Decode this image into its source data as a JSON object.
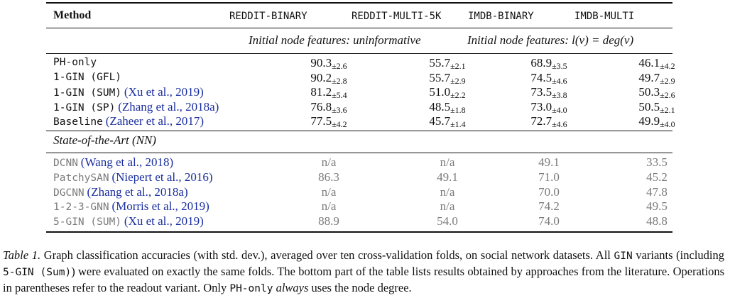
{
  "table": {
    "header": {
      "method": "Method",
      "datasets": [
        "REDDIT-BINARY",
        "REDDIT-MULTI-5K",
        "IMDB-BINARY",
        "IMDB-MULTI"
      ]
    },
    "feature_notes": {
      "left": "Initial node features: uninformative",
      "right_prefix": "Initial node features: ",
      "right_formula": "l(v) = deg(v)"
    },
    "our_rows": [
      {
        "name": "PH-only",
        "cite": "",
        "values": [
          "90.3",
          "55.7",
          "68.9",
          "46.1"
        ],
        "sds": [
          "±2.6",
          "±2.1",
          "±3.5",
          "±4.2"
        ]
      },
      {
        "name": "1-GIN (GFL)",
        "cite": "",
        "values": [
          "90.2",
          "55.7",
          "74.5",
          "49.7"
        ],
        "sds": [
          "±2.8",
          "±2.9",
          "±4.6",
          "±2.9"
        ]
      },
      {
        "name": "1-GIN (SUM)",
        "cite": "(Xu et al., 2019)",
        "values": [
          "81.2",
          "51.0",
          "73.5",
          "50.3"
        ],
        "sds": [
          "±5.4",
          "±2.2",
          "±3.8",
          "±2.6"
        ]
      },
      {
        "name": "1-GIN (SP)",
        "cite": "(Zhang et al., 2018a)",
        "values": [
          "76.8",
          "48.5",
          "73.0",
          "50.5"
        ],
        "sds": [
          "±3.6",
          "±1.8",
          "±4.0",
          "±2.1"
        ]
      },
      {
        "name": "Baseline",
        "cite": "(Zaheer et al., 2017)",
        "values": [
          "77.5",
          "45.7",
          "72.7",
          "49.9"
        ],
        "sds": [
          "±4.2",
          "±1.4",
          "±4.6",
          "±4.0"
        ]
      }
    ],
    "sota_label": "State-of-the-Art (NN)",
    "sota_rows": [
      {
        "name": "DCNN",
        "cite": "(Wang et al., 2018)",
        "values": [
          "n/a",
          "n/a",
          "49.1",
          "33.5"
        ]
      },
      {
        "name": "PatchySAN",
        "cite": "(Niepert et al., 2016)",
        "values": [
          "86.3",
          "49.1",
          "71.0",
          "45.2"
        ]
      },
      {
        "name": "DGCNN",
        "cite": "(Zhang et al., 2018a)",
        "values": [
          "n/a",
          "n/a",
          "70.0",
          "47.8"
        ]
      },
      {
        "name": "1-2-3-GNN",
        "cite": "(Morris et al., 2019)",
        "values": [
          "n/a",
          "n/a",
          "74.2",
          "49.5"
        ]
      },
      {
        "name": "5-GIN (SUM)",
        "cite": "(Xu et al., 2019)",
        "values": [
          "88.9",
          "54.0",
          "74.0",
          "48.8"
        ]
      }
    ]
  },
  "caption": {
    "label": "Table 1.",
    "t1": " Graph classification accuracies (with std. dev.), averaged over ten cross-validation folds, on social network datasets. All ",
    "m1": "GIN",
    "t2": " variants (including ",
    "m2": "5-GIN (Sum)",
    "t3": ") were evaluated on exactly the same folds. The bottom part of the table lists results obtained by approaches from the literature. Operations in parentheses refer to the readout variant. Only ",
    "m3": "PH-only",
    "t4": " ",
    "em": "always",
    "t5": " uses the node degree."
  }
}
